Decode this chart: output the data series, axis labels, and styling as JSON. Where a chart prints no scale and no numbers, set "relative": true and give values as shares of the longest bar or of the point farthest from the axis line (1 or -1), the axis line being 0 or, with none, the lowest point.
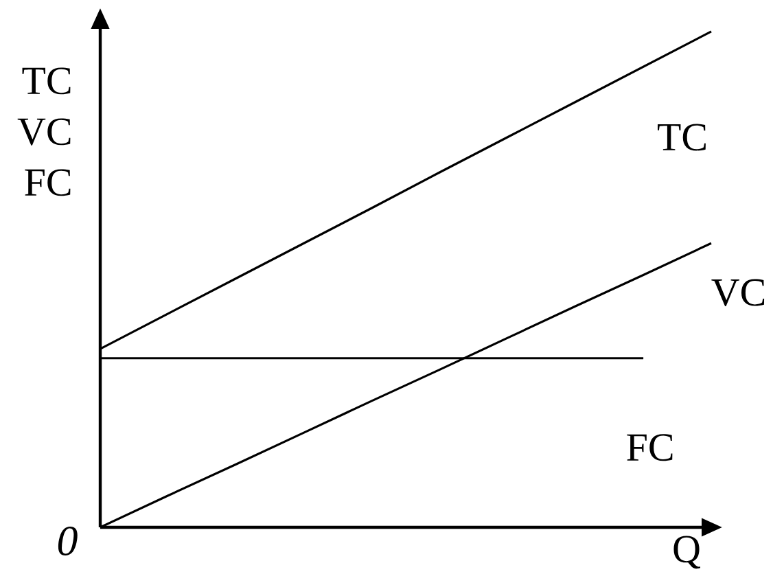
{
  "chart_data": {
    "type": "line",
    "relative": true,
    "xlabel": "Q",
    "ylabel": "TC VC FC",
    "annotations": [
      "0"
    ],
    "categories": [
      null,
      null,
      null,
      null,
      null,
      null,
      null,
      null,
      null,
      null
    ],
    "series": [
      {
        "name": "TC",
        "color": "#000000",
        "values": [
          0.36,
          0.431,
          0.502,
          0.573,
          0.644,
          0.716,
          0.787,
          0.858,
          0.929,
          1
        ]
      },
      {
        "name": "VC",
        "color": "#000000",
        "values": [
          0,
          0.064,
          0.127,
          0.191,
          0.255,
          0.318,
          0.382,
          0.446,
          0.509,
          0.573
        ]
      },
      {
        "name": "FC",
        "color": "#000000",
        "values": [
          0.341,
          0.341,
          0.341,
          0.341,
          0.341,
          0.341,
          0.341,
          0.341,
          0.341,
          null
        ]
      }
    ]
  }
}
